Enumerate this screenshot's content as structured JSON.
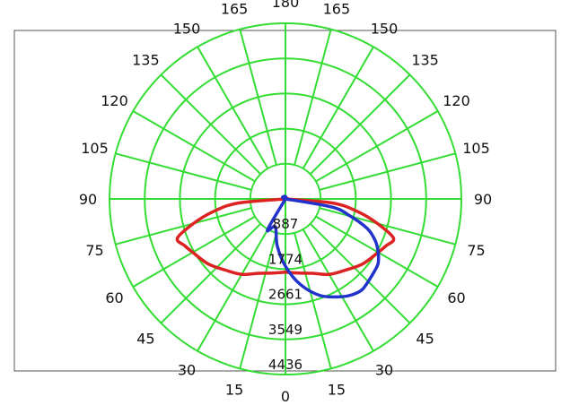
{
  "chart_data": {
    "type": "polar",
    "angle_unit": "deg",
    "angle_ticks": [
      0,
      15,
      30,
      45,
      60,
      75,
      90,
      105,
      120,
      135,
      150,
      165,
      180
    ],
    "angle_tick_labels_left": [
      "15",
      "30",
      "45",
      "60",
      "75",
      "90",
      "105",
      "120",
      "135",
      "150",
      "165"
    ],
    "angle_tick_labels_right": [
      "15",
      "30",
      "45",
      "60",
      "75",
      "90",
      "105",
      "120",
      "135",
      "150",
      "165"
    ],
    "angle_label_bottom": "0",
    "angle_label_top": "180",
    "radial_ticks": [
      887,
      1774,
      2661,
      3549,
      4436
    ],
    "radial_tick_labels": [
      "887",
      "1774",
      "2661",
      "3549",
      "4436"
    ],
    "rlim": [
      0,
      4436
    ],
    "grid": true,
    "colors": {
      "grid": "#33dd33",
      "series_red": "#dd2222",
      "series_blue": "#2233cc",
      "frame": "#555555"
    },
    "series": [
      {
        "color": "#dd2222",
        "side": "both",
        "angles": [
          0,
          10,
          20,
          30,
          40,
          50,
          60,
          65,
          70,
          75,
          80,
          85,
          90
        ],
        "values": [
          1850,
          1900,
          2000,
          2200,
          2350,
          2550,
          2700,
          2800,
          2900,
          2400,
          1850,
          1200,
          0
        ]
      },
      {
        "color": "#2233cc",
        "side": "asymmetric",
        "angles": [
          -40,
          -30,
          -20,
          -10,
          0,
          10,
          20,
          30,
          35,
          40,
          45,
          50,
          55,
          60,
          65,
          70,
          75,
          80,
          90
        ],
        "values": [
          0,
          900,
          750,
          1200,
          1700,
          2200,
          2600,
          2850,
          2950,
          3000,
          2950,
          2900,
          2850,
          2700,
          2500,
          2200,
          1700,
          1200,
          0
        ]
      }
    ]
  }
}
